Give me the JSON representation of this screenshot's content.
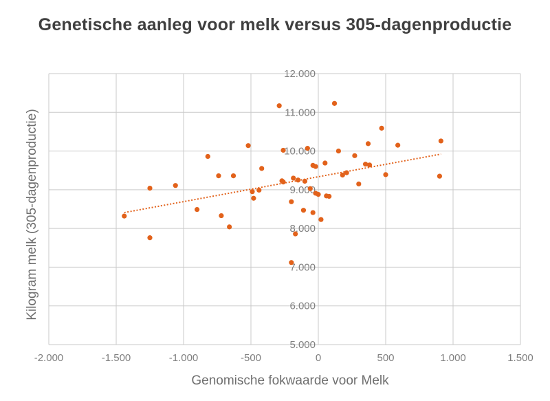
{
  "chart_data": {
    "type": "scatter",
    "title": "Genetische aanleg voor melk versus 305-dagenproductie",
    "xlabel": "Genomische fokwaarde voor Melk",
    "ylabel": "Kilogram melk (305-dagenproductie)",
    "xlim": [
      -2000,
      1500
    ],
    "ylim": [
      5000,
      12000
    ],
    "x_ticks": [
      -2000,
      -1500,
      -1000,
      -500,
      0,
      500,
      1000,
      1500
    ],
    "x_tick_labels": [
      "-2.000",
      "-1.500",
      "-1.000",
      "-500",
      "0",
      "500",
      "1.000",
      "1.500"
    ],
    "y_ticks": [
      5000,
      6000,
      7000,
      8000,
      9000,
      10000,
      11000,
      12000
    ],
    "y_tick_labels": [
      "5.000",
      "6.000",
      "7.000",
      "8.000",
      "9.000",
      "10.000",
      "11.000",
      "12.000"
    ],
    "grid": true,
    "point_color": "#e2621b",
    "trendline": {
      "style": "dotted",
      "color": "#e2621b",
      "x": [
        -1440,
        910
      ],
      "y": [
        8410,
        9920
      ]
    },
    "series": [
      {
        "points": [
          [
            -1440,
            8320
          ],
          [
            -1250,
            9040
          ],
          [
            -1250,
            7760
          ],
          [
            -1060,
            9110
          ],
          [
            -900,
            8490
          ],
          [
            -820,
            9860
          ],
          [
            -740,
            9360
          ],
          [
            -720,
            8330
          ],
          [
            -660,
            8040
          ],
          [
            -630,
            9360
          ],
          [
            -520,
            10140
          ],
          [
            -490,
            8950
          ],
          [
            -480,
            8780
          ],
          [
            -440,
            8990
          ],
          [
            -420,
            9550
          ],
          [
            -290,
            11170
          ],
          [
            -270,
            9230
          ],
          [
            -260,
            9200
          ],
          [
            -260,
            10020
          ],
          [
            -200,
            8690
          ],
          [
            -185,
            9300
          ],
          [
            -170,
            7860
          ],
          [
            -150,
            9250
          ],
          [
            -110,
            8470
          ],
          [
            -100,
            9220
          ],
          [
            -80,
            10070
          ],
          [
            -60,
            9030
          ],
          [
            -40,
            8410
          ],
          [
            -40,
            9630
          ],
          [
            -20,
            9600
          ],
          [
            -20,
            8910
          ],
          [
            0,
            8880
          ],
          [
            20,
            8230
          ],
          [
            50,
            9690
          ],
          [
            60,
            8840
          ],
          [
            80,
            8830
          ],
          [
            120,
            11230
          ],
          [
            150,
            10000
          ],
          [
            180,
            9380
          ],
          [
            210,
            9440
          ],
          [
            270,
            9880
          ],
          [
            300,
            9150
          ],
          [
            350,
            9660
          ],
          [
            370,
            10190
          ],
          [
            380,
            9640
          ],
          [
            470,
            10590
          ],
          [
            500,
            9390
          ],
          [
            590,
            10150
          ],
          [
            900,
            9350
          ],
          [
            910,
            10260
          ],
          [
            -200,
            7120
          ]
        ]
      }
    ]
  }
}
